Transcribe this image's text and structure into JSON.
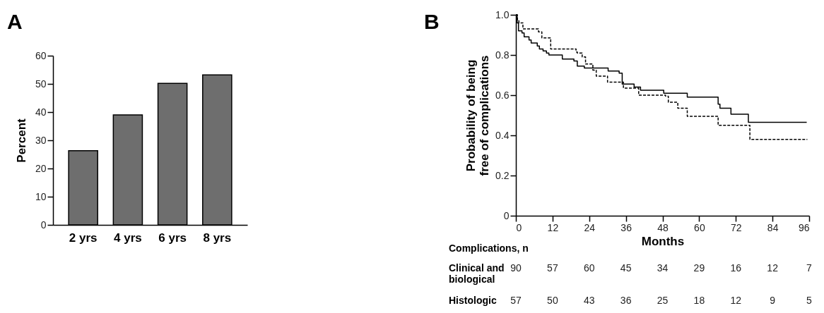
{
  "chart_data": [
    {
      "type": "bar",
      "title": "A",
      "ylabel": "Percent",
      "categories": [
        "2 yrs",
        "4 yrs",
        "6 yrs",
        "8 yrs"
      ],
      "values": [
        26.3,
        39,
        50.2,
        53.2
      ],
      "color": "#6e6e6e",
      "ylim": [
        0,
        60
      ],
      "yticks": [
        0,
        10,
        20,
        30,
        40,
        50,
        60
      ],
      "grid": false,
      "legend": false
    },
    {
      "type": "step",
      "title": "B",
      "xlabel": "Months",
      "ylabel": "Probability of being free of complications",
      "xlim": [
        0,
        96
      ],
      "xticks": [
        0,
        12,
        24,
        36,
        48,
        60,
        72,
        84,
        96
      ],
      "ylim": [
        0,
        1
      ],
      "yticks": [
        0,
        0.2,
        0.4,
        0.6,
        0.8,
        {
          "value": 1,
          "label": "1.0"
        }
      ],
      "grid": false,
      "legend": false,
      "series": [
        {
          "color": "#000000",
          "line_style": "solid",
          "x": [
            0,
            0.4,
            0.85,
            2,
            2.7,
            4.3,
            5,
            7,
            7.7,
            8.9,
            10,
            10.8,
            15.2,
            19,
            20.1,
            22.4,
            30.2,
            33.8,
            34.8,
            38.7,
            40.8,
            48.4,
            56.1,
            66.2,
            66.8,
            70.4,
            76.1,
            95.2
          ],
          "values": [
            1,
            0.96,
            0.92,
            0.91,
            0.89,
            0.875,
            0.86,
            0.845,
            0.83,
            0.82,
            0.81,
            0.8,
            0.78,
            0.77,
            0.745,
            0.735,
            0.72,
            0.71,
            0.655,
            0.64,
            0.625,
            0.61,
            0.59,
            0.555,
            0.535,
            0.505,
            0.465,
            0.465
          ]
        },
        {
          "color": "#000000",
          "line_style": "dashed",
          "x": [
            0,
            0.5,
            1,
            2.3,
            7.4,
            8.5,
            11.4,
            19.7,
            20.1,
            21.7,
            22.8,
            25.2,
            26.3,
            30,
            35.2,
            40.2,
            49,
            49.9,
            53,
            56.1,
            66.2,
            76.6,
            95.4
          ],
          "values": [
            1,
            0.97,
            0.96,
            0.93,
            0.915,
            0.885,
            0.83,
            0.815,
            0.81,
            0.79,
            0.755,
            0.725,
            0.695,
            0.665,
            0.635,
            0.6,
            0.595,
            0.565,
            0.535,
            0.495,
            0.45,
            0.38,
            0.38
          ]
        }
      ],
      "annotations": [
        "Complications, n",
        "Clinical and biological",
        "90",
        "57",
        "60",
        "45",
        "34",
        "29",
        "16",
        "12",
        "7",
        "Histologic",
        "57",
        "50",
        "43",
        "36",
        "25",
        "18",
        "12",
        "9",
        "5"
      ]
    }
  ]
}
